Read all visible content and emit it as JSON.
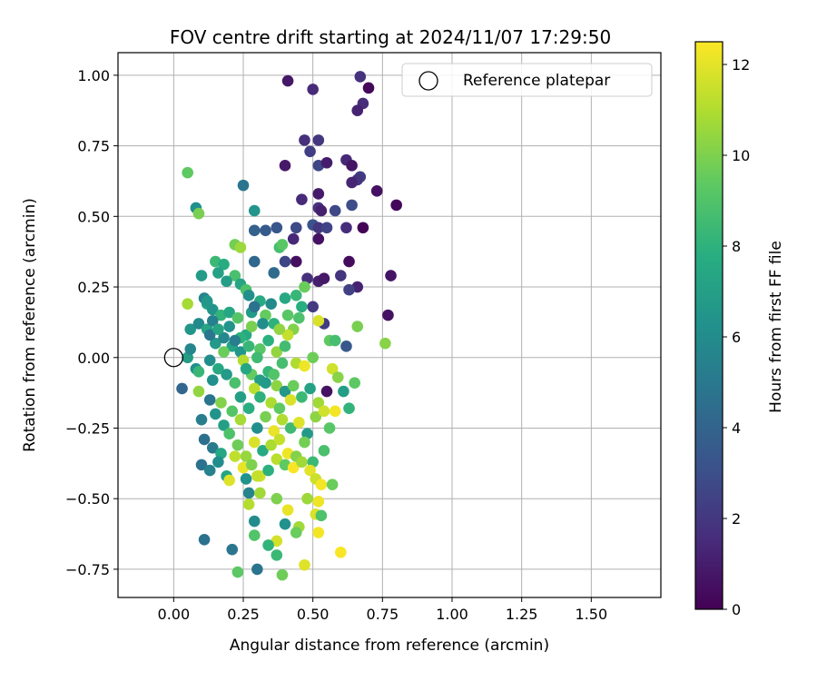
{
  "chart_data": {
    "type": "scatter",
    "title": "FOV centre drift starting at 2024/11/07 17:29:50",
    "xlabel": "Angular distance from reference (arcmin)",
    "ylabel": "Rotation from reference (arcmin)",
    "xlim": [
      -0.2,
      1.75
    ],
    "ylim": [
      -0.85,
      1.08
    ],
    "x_ticks": [
      0.0,
      0.25,
      0.5,
      0.75,
      1.0,
      1.25,
      1.5
    ],
    "x_tick_labels": [
      "0.00",
      "0.25",
      "0.50",
      "0.75",
      "1.00",
      "1.25",
      "1.50"
    ],
    "y_ticks": [
      -0.75,
      -0.5,
      -0.25,
      0.0,
      0.25,
      0.5,
      0.75,
      1.0
    ],
    "y_tick_labels": [
      "−0.75",
      "−0.50",
      "−0.25",
      "0.00",
      "0.25",
      "0.50",
      "0.75",
      "1.00"
    ],
    "grid": true,
    "legend": {
      "placement": "top-right",
      "entries": [
        "Reference platepar"
      ]
    },
    "reference_point": {
      "x": 0.0,
      "y": 0.0,
      "style": "open-circle"
    },
    "colorbar": {
      "label": "Hours from first FF file",
      "range": [
        0,
        12.5
      ],
      "ticks": [
        0,
        2,
        4,
        6,
        8,
        10,
        12
      ],
      "colormap": "viridis"
    },
    "series": [
      {
        "color_by": "Hours from first FF file",
        "points": [
          [
            0.41,
            0.98,
            0.8
          ],
          [
            0.5,
            0.95,
            1.5
          ],
          [
            0.67,
            0.995,
            1.8
          ],
          [
            0.7,
            0.955,
            0.3
          ],
          [
            0.68,
            0.9,
            1.6
          ],
          [
            0.66,
            0.875,
            1.2
          ],
          [
            0.47,
            0.77,
            1.7
          ],
          [
            0.52,
            0.77,
            2.0
          ],
          [
            0.49,
            0.73,
            2.3
          ],
          [
            0.52,
            0.68,
            2.6
          ],
          [
            0.55,
            0.69,
            1.0
          ],
          [
            0.4,
            0.68,
            0.8
          ],
          [
            0.62,
            0.7,
            1.4
          ],
          [
            0.64,
            0.68,
            0.7
          ],
          [
            0.67,
            0.64,
            2.2
          ],
          [
            0.66,
            0.63,
            1.9
          ],
          [
            0.64,
            0.62,
            1.3
          ],
          [
            0.73,
            0.59,
            0.6
          ],
          [
            0.8,
            0.54,
            0.2
          ],
          [
            0.46,
            0.56,
            1.5
          ],
          [
            0.52,
            0.58,
            0.9
          ],
          [
            0.52,
            0.53,
            1.8
          ],
          [
            0.53,
            0.52,
            1.1
          ],
          [
            0.58,
            0.52,
            2.7
          ],
          [
            0.64,
            0.54,
            2.9
          ],
          [
            0.5,
            0.47,
            3.2
          ],
          [
            0.52,
            0.46,
            2.0
          ],
          [
            0.55,
            0.46,
            2.5
          ],
          [
            0.62,
            0.46,
            1.6
          ],
          [
            0.68,
            0.46,
            0.1
          ],
          [
            0.52,
            0.42,
            0.6
          ],
          [
            0.44,
            0.46,
            2.8
          ],
          [
            0.37,
            0.46,
            3.3
          ],
          [
            0.33,
            0.45,
            3.5
          ],
          [
            0.29,
            0.45,
            3.9
          ],
          [
            0.43,
            0.42,
            1.4
          ],
          [
            0.25,
            0.61,
            4.8
          ],
          [
            0.29,
            0.52,
            6.5
          ],
          [
            0.63,
            0.34,
            0.4
          ],
          [
            0.44,
            0.34,
            0.5
          ],
          [
            0.6,
            0.29,
            1.9
          ],
          [
            0.78,
            0.29,
            0.7
          ],
          [
            0.52,
            0.27,
            1.1
          ],
          [
            0.54,
            0.28,
            0.8
          ],
          [
            0.66,
            0.25,
            1.2
          ],
          [
            0.63,
            0.24,
            2.4
          ],
          [
            0.48,
            0.28,
            1.7
          ],
          [
            0.5,
            0.18,
            2.1
          ],
          [
            0.4,
            0.34,
            2.6
          ],
          [
            0.36,
            0.3,
            4.3
          ],
          [
            0.29,
            0.34,
            4.2
          ],
          [
            0.77,
            0.15,
            0.6
          ],
          [
            0.62,
            0.04,
            3.4
          ],
          [
            0.54,
            0.12,
            2.2
          ],
          [
            0.05,
            0.655,
            9.4
          ],
          [
            0.08,
            0.53,
            6.2
          ],
          [
            0.09,
            0.51,
            9.9
          ],
          [
            0.38,
            0.39,
            8.7
          ],
          [
            0.39,
            0.4,
            9.2
          ],
          [
            0.22,
            0.4,
            9.8
          ],
          [
            0.24,
            0.39,
            10.6
          ],
          [
            0.1,
            0.29,
            6.8
          ],
          [
            0.15,
            0.34,
            8.4
          ],
          [
            0.18,
            0.33,
            7.7
          ],
          [
            0.16,
            0.3,
            7.1
          ],
          [
            0.22,
            0.29,
            8.8
          ],
          [
            0.19,
            0.27,
            6.9
          ],
          [
            0.24,
            0.26,
            7.3
          ],
          [
            0.26,
            0.24,
            8.9
          ],
          [
            0.27,
            0.22,
            6.2
          ],
          [
            0.31,
            0.2,
            7.6
          ],
          [
            0.11,
            0.21,
            5.6
          ],
          [
            0.12,
            0.19,
            7.2
          ],
          [
            0.14,
            0.17,
            6.4
          ],
          [
            0.17,
            0.15,
            8.1
          ],
          [
            0.2,
            0.16,
            7.4
          ],
          [
            0.23,
            0.14,
            9.1
          ],
          [
            0.28,
            0.16,
            6.8
          ],
          [
            0.33,
            0.15,
            9.5
          ],
          [
            0.36,
            0.12,
            8.0
          ],
          [
            0.4,
            0.21,
            7.5
          ],
          [
            0.44,
            0.22,
            8.3
          ],
          [
            0.47,
            0.25,
            9.6
          ],
          [
            0.46,
            0.18,
            7.8
          ],
          [
            0.45,
            0.14,
            8.9
          ],
          [
            0.43,
            0.1,
            10.1
          ],
          [
            0.41,
            0.08,
            11.4
          ],
          [
            0.52,
            0.13,
            11.8
          ],
          [
            0.56,
            0.06,
            9.4
          ],
          [
            0.58,
            0.06,
            8.7
          ],
          [
            0.66,
            0.11,
            9.9
          ],
          [
            0.76,
            0.05,
            10.2
          ],
          [
            0.05,
            0.19,
            10.8
          ],
          [
            0.06,
            0.1,
            6.5
          ],
          [
            0.09,
            0.12,
            5.9
          ],
          [
            0.12,
            0.1,
            7.3
          ],
          [
            0.15,
            0.05,
            6.7
          ],
          [
            0.18,
            0.07,
            5.8
          ],
          [
            0.21,
            0.04,
            7.2
          ],
          [
            0.24,
            0.02,
            6.5
          ],
          [
            0.27,
            0.04,
            8.3
          ],
          [
            0.31,
            0.03,
            9.2
          ],
          [
            0.34,
            0.06,
            7.9
          ],
          [
            0.37,
            0.02,
            10.4
          ],
          [
            0.4,
            0.04,
            8.6
          ],
          [
            0.44,
            -0.02,
            11.0
          ],
          [
            0.47,
            -0.03,
            12.2
          ],
          [
            0.5,
            0.0,
            9.7
          ],
          [
            0.05,
            0.0,
            6.9
          ],
          [
            0.06,
            0.03,
            5.7
          ],
          [
            0.08,
            -0.04,
            6.2
          ],
          [
            0.09,
            -0.05,
            8.3
          ],
          [
            0.03,
            -0.11,
            4.1
          ],
          [
            0.09,
            -0.12,
            10.4
          ],
          [
            0.13,
            -0.01,
            6.1
          ],
          [
            0.16,
            -0.04,
            7.5
          ],
          [
            0.19,
            -0.06,
            6.8
          ],
          [
            0.22,
            -0.09,
            8.8
          ],
          [
            0.25,
            -0.01,
            11.1
          ],
          [
            0.28,
            -0.06,
            9.5
          ],
          [
            0.31,
            -0.08,
            7.0
          ],
          [
            0.34,
            -0.05,
            8.2
          ],
          [
            0.37,
            -0.1,
            10.3
          ],
          [
            0.4,
            -0.12,
            6.6
          ],
          [
            0.43,
            -0.1,
            9.6
          ],
          [
            0.46,
            -0.14,
            8.4
          ],
          [
            0.49,
            -0.11,
            7.1
          ],
          [
            0.52,
            -0.16,
            10.7
          ],
          [
            0.55,
            -0.12,
            0.6
          ],
          [
            0.57,
            -0.04,
            11.6
          ],
          [
            0.59,
            -0.07,
            10.2
          ],
          [
            0.61,
            -0.12,
            6.9
          ],
          [
            0.63,
            -0.18,
            8.1
          ],
          [
            0.65,
            -0.09,
            9.3
          ],
          [
            0.1,
            -0.22,
            5.3
          ],
          [
            0.13,
            -0.15,
            4.8
          ],
          [
            0.15,
            -0.2,
            6.4
          ],
          [
            0.18,
            -0.24,
            7.0
          ],
          [
            0.21,
            -0.19,
            9.1
          ],
          [
            0.24,
            -0.22,
            10.8
          ],
          [
            0.27,
            -0.18,
            7.8
          ],
          [
            0.3,
            -0.25,
            6.2
          ],
          [
            0.33,
            -0.21,
            9.9
          ],
          [
            0.36,
            -0.26,
            12.1
          ],
          [
            0.39,
            -0.22,
            11.0
          ],
          [
            0.42,
            -0.25,
            8.5
          ],
          [
            0.45,
            -0.23,
            11.9
          ],
          [
            0.48,
            -0.27,
            6.7
          ],
          [
            0.51,
            -0.21,
            10.3
          ],
          [
            0.54,
            -0.19,
            11.6
          ],
          [
            0.56,
            -0.25,
            9.2
          ],
          [
            0.58,
            -0.19,
            12.3
          ],
          [
            0.11,
            -0.29,
            4.6
          ],
          [
            0.14,
            -0.32,
            5.1
          ],
          [
            0.17,
            -0.34,
            7.4
          ],
          [
            0.2,
            -0.27,
            8.9
          ],
          [
            0.23,
            -0.31,
            9.7
          ],
          [
            0.26,
            -0.35,
            10.5
          ],
          [
            0.29,
            -0.3,
            11.8
          ],
          [
            0.32,
            -0.33,
            7.6
          ],
          [
            0.35,
            -0.31,
            10.9
          ],
          [
            0.38,
            -0.29,
            11.4
          ],
          [
            0.41,
            -0.34,
            12.2
          ],
          [
            0.44,
            -0.35,
            10.1
          ],
          [
            0.47,
            -0.3,
            9.8
          ],
          [
            0.5,
            -0.37,
            8.4
          ],
          [
            0.54,
            -0.33,
            8.8
          ],
          [
            0.1,
            -0.38,
            4.7
          ],
          [
            0.13,
            -0.4,
            5.5
          ],
          [
            0.16,
            -0.37,
            6.1
          ],
          [
            0.19,
            -0.42,
            7.2
          ],
          [
            0.22,
            -0.35,
            11.3
          ],
          [
            0.25,
            -0.39,
            12.1
          ],
          [
            0.28,
            -0.38,
            10.0
          ],
          [
            0.31,
            -0.42,
            11.6
          ],
          [
            0.34,
            -0.4,
            7.9
          ],
          [
            0.37,
            -0.36,
            11.2
          ],
          [
            0.4,
            -0.38,
            9.4
          ],
          [
            0.43,
            -0.39,
            12.4
          ],
          [
            0.46,
            -0.37,
            10.7
          ],
          [
            0.49,
            -0.4,
            12.0
          ],
          [
            0.51,
            -0.43,
            11.5
          ],
          [
            0.53,
            -0.45,
            12.3
          ],
          [
            0.57,
            -0.45,
            9.6
          ],
          [
            0.2,
            -0.435,
            11.9
          ],
          [
            0.26,
            -0.43,
            6.3
          ],
          [
            0.3,
            -0.42,
            11.4
          ],
          [
            0.27,
            -0.48,
            5.6
          ],
          [
            0.31,
            -0.48,
            10.7
          ],
          [
            0.37,
            -0.5,
            10.0
          ],
          [
            0.27,
            -0.52,
            11.1
          ],
          [
            0.41,
            -0.54,
            12.1
          ],
          [
            0.48,
            -0.5,
            10.6
          ],
          [
            0.52,
            -0.51,
            12.2
          ],
          [
            0.51,
            -0.555,
            11.8
          ],
          [
            0.53,
            -0.56,
            8.9
          ],
          [
            0.29,
            -0.58,
            6.0
          ],
          [
            0.4,
            -0.59,
            6.3
          ],
          [
            0.45,
            -0.6,
            10.7
          ],
          [
            0.44,
            -0.62,
            9.6
          ],
          [
            0.52,
            -0.62,
            12.3
          ],
          [
            0.29,
            -0.63,
            9.0
          ],
          [
            0.37,
            -0.65,
            11.7
          ],
          [
            0.34,
            -0.665,
            8.1
          ],
          [
            0.11,
            -0.645,
            4.7
          ],
          [
            0.21,
            -0.68,
            4.9
          ],
          [
            0.6,
            -0.69,
            12.4
          ],
          [
            0.37,
            -0.7,
            8.4
          ],
          [
            0.47,
            -0.735,
            11.9
          ],
          [
            0.23,
            -0.76,
            9.3
          ],
          [
            0.3,
            -0.75,
            4.8
          ],
          [
            0.39,
            -0.77,
            9.7
          ],
          [
            0.12,
            0.2,
            6.6
          ],
          [
            0.2,
            0.11,
            6.4
          ],
          [
            0.14,
            0.13,
            5.4
          ],
          [
            0.26,
            0.08,
            7.6
          ],
          [
            0.28,
            0.11,
            9.9
          ],
          [
            0.3,
            0.0,
            8.5
          ],
          [
            0.32,
            0.12,
            6.1
          ],
          [
            0.35,
            0.19,
            5.9
          ],
          [
            0.38,
            0.1,
            10.4
          ],
          [
            0.41,
            0.15,
            9.2
          ],
          [
            0.13,
            0.08,
            4.9
          ],
          [
            0.16,
            0.1,
            7.3
          ],
          [
            0.24,
            0.07,
            8.0
          ],
          [
            0.29,
            0.18,
            4.7
          ],
          [
            0.22,
            0.06,
            5.3
          ],
          [
            0.18,
            0.02,
            9.6
          ],
          [
            0.14,
            -0.08,
            6.2
          ],
          [
            0.26,
            -0.04,
            7.4
          ],
          [
            0.33,
            -0.09,
            6.8
          ],
          [
            0.36,
            -0.06,
            9.0
          ],
          [
            0.39,
            -0.02,
            8.7
          ],
          [
            0.17,
            -0.16,
            10.1
          ],
          [
            0.24,
            -0.14,
            7.0
          ],
          [
            0.29,
            -0.11,
            11.2
          ],
          [
            0.31,
            -0.14,
            8.0
          ],
          [
            0.35,
            -0.16,
            10.9
          ],
          [
            0.38,
            -0.18,
            9.4
          ],
          [
            0.42,
            -0.15,
            11.8
          ]
        ]
      }
    ]
  }
}
